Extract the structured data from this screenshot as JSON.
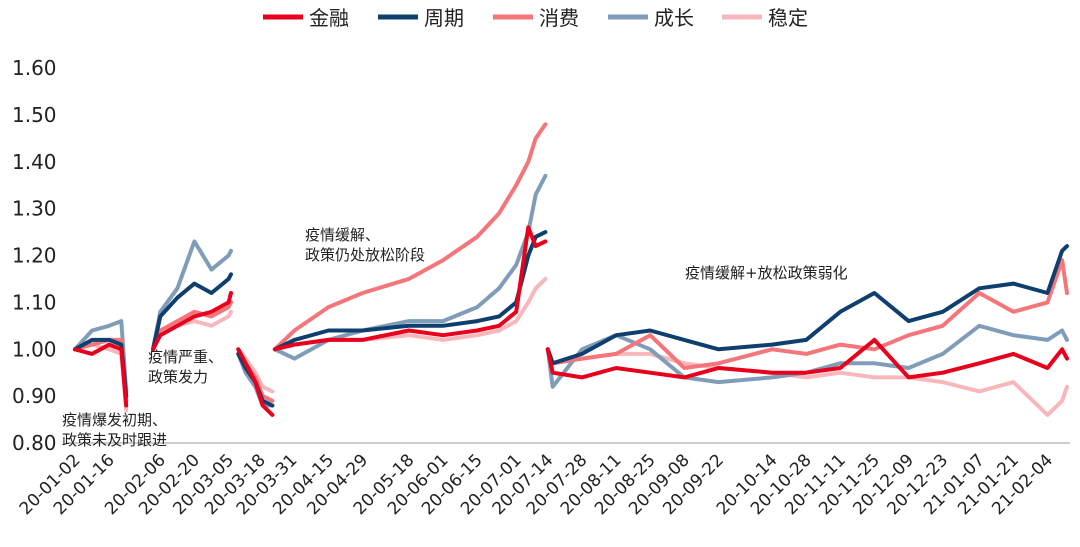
{
  "chart_data": {
    "type": "line",
    "ylim": [
      0.8,
      1.6
    ],
    "y_ticks": [
      "0.80",
      "0.90",
      "1.00",
      "1.10",
      "1.20",
      "1.30",
      "1.40",
      "1.50",
      "1.60"
    ],
    "x_ticks": [
      "20-01-02",
      "20-01-16",
      "20-02-06",
      "20-02-20",
      "20-03-05",
      "20-03-18",
      "20-03-31",
      "20-04-15",
      "20-04-29",
      "20-05-18",
      "20-06-01",
      "20-06-15",
      "20-07-01",
      "20-07-14",
      "20-07-28",
      "20-08-11",
      "20-08-25",
      "20-09-08",
      "20-09-22",
      "20-10-14",
      "20-10-28",
      "20-11-11",
      "20-11-25",
      "20-12-09",
      "20-12-23",
      "21-01-07",
      "21-01-21",
      "21-02-04"
    ],
    "legend": [
      {
        "name": "金融",
        "color": "#e8001c"
      },
      {
        "name": "周期",
        "color": "#0e3f6e"
      },
      {
        "name": "消费",
        "color": "#f4757a"
      },
      {
        "name": "成长",
        "color": "#7f9db9"
      },
      {
        "name": "稳定",
        "color": "#f7b7bb"
      }
    ],
    "annotations": [
      {
        "lines": [
          "疫情爆发初期、",
          "政策未及时跟进"
        ]
      },
      {
        "lines": [
          "疫情严重、",
          "政策发力"
        ]
      },
      {
        "lines": [
          "疫情缓解、",
          "政策仍处放松阶段"
        ]
      },
      {
        "lines": [
          "疫情缓解+放松政策弱化"
        ]
      }
    ],
    "segments": [
      {
        "x": [
          "20-01-02",
          "20-01-09",
          "20-01-16",
          "20-01-21",
          "20-01-23"
        ],
        "series": [
          {
            "name": "金融",
            "values": [
              1.0,
              0.99,
              1.01,
              1.0,
              0.88
            ]
          },
          {
            "name": "周期",
            "values": [
              1.0,
              1.02,
              1.02,
              1.01,
              0.9
            ]
          },
          {
            "name": "消费",
            "values": [
              1.0,
              1.01,
              1.02,
              1.02,
              0.89
            ]
          },
          {
            "name": "成长",
            "values": [
              1.0,
              1.04,
              1.05,
              1.06,
              0.91
            ]
          },
          {
            "name": "稳定",
            "values": [
              1.0,
              1.01,
              1.0,
              0.99,
              0.87
            ]
          }
        ]
      },
      {
        "x": [
          "20-02-03",
          "20-02-06",
          "20-02-13",
          "20-02-20",
          "20-02-27",
          "20-03-05",
          "20-03-06"
        ],
        "series": [
          {
            "name": "金融",
            "values": [
              1.0,
              1.03,
              1.05,
              1.07,
              1.08,
              1.1,
              1.12
            ]
          },
          {
            "name": "周期",
            "values": [
              1.0,
              1.07,
              1.11,
              1.14,
              1.12,
              1.15,
              1.16
            ]
          },
          {
            "name": "消费",
            "values": [
              1.0,
              1.04,
              1.06,
              1.08,
              1.07,
              1.09,
              1.1
            ]
          },
          {
            "name": "成长",
            "values": [
              1.0,
              1.08,
              1.13,
              1.23,
              1.17,
              1.2,
              1.21
            ]
          },
          {
            "name": "稳定",
            "values": [
              1.0,
              1.03,
              1.05,
              1.06,
              1.05,
              1.07,
              1.08
            ]
          }
        ]
      },
      {
        "x": [
          "20-03-09",
          "20-03-12",
          "20-03-16",
          "20-03-19",
          "20-03-23"
        ],
        "series": [
          {
            "name": "金融",
            "values": [
              1.0,
              0.97,
              0.93,
              0.88,
              0.86
            ]
          },
          {
            "name": "周期",
            "values": [
              0.99,
              0.96,
              0.93,
              0.89,
              0.88
            ]
          },
          {
            "name": "消费",
            "values": [
              1.0,
              0.97,
              0.94,
              0.9,
              0.89
            ]
          },
          {
            "name": "成长",
            "values": [
              0.99,
              0.95,
              0.92,
              0.88,
              0.88
            ]
          },
          {
            "name": "稳定",
            "values": [
              1.0,
              0.98,
              0.95,
              0.92,
              0.91
            ]
          }
        ]
      },
      {
        "x": [
          "20-03-24",
          "20-04-01",
          "20-04-15",
          "20-04-29",
          "20-05-18",
          "20-06-01",
          "20-06-15",
          "20-06-24",
          "20-07-01",
          "20-07-06",
          "20-07-09",
          "20-07-13"
        ],
        "series": [
          {
            "name": "金融",
            "values": [
              1.0,
              1.01,
              1.02,
              1.02,
              1.04,
              1.03,
              1.04,
              1.05,
              1.08,
              1.26,
              1.22,
              1.23
            ]
          },
          {
            "name": "周期",
            "values": [
              1.0,
              1.02,
              1.04,
              1.04,
              1.05,
              1.05,
              1.06,
              1.07,
              1.1,
              1.2,
              1.24,
              1.25
            ]
          },
          {
            "name": "消费",
            "values": [
              1.0,
              1.04,
              1.09,
              1.12,
              1.15,
              1.19,
              1.24,
              1.29,
              1.35,
              1.4,
              1.45,
              1.48
            ]
          },
          {
            "name": "成长",
            "values": [
              1.0,
              0.98,
              1.02,
              1.04,
              1.06,
              1.06,
              1.09,
              1.13,
              1.18,
              1.25,
              1.33,
              1.37
            ]
          },
          {
            "name": "稳定",
            "values": [
              1.0,
              1.01,
              1.02,
              1.02,
              1.03,
              1.02,
              1.03,
              1.04,
              1.06,
              1.1,
              1.13,
              1.15
            ]
          }
        ]
      },
      {
        "x": [
          "20-07-14",
          "20-07-16",
          "20-07-28",
          "20-08-11",
          "20-08-25",
          "20-09-08",
          "20-09-22",
          "20-10-14",
          "20-10-28",
          "20-11-11",
          "20-11-25",
          "20-12-09",
          "20-12-23",
          "21-01-07",
          "21-01-21",
          "21-02-04",
          "21-02-10",
          "21-02-12"
        ],
        "series": [
          {
            "name": "金融",
            "values": [
              1.0,
              0.95,
              0.94,
              0.96,
              0.95,
              0.94,
              0.96,
              0.95,
              0.95,
              0.96,
              1.02,
              0.94,
              0.95,
              0.97,
              0.99,
              0.96,
              1.0,
              0.98
            ]
          },
          {
            "name": "周期",
            "values": [
              1.0,
              0.97,
              0.99,
              1.03,
              1.04,
              1.02,
              1.0,
              1.01,
              1.02,
              1.08,
              1.12,
              1.06,
              1.08,
              1.13,
              1.14,
              1.12,
              1.21,
              1.22
            ]
          },
          {
            "name": "消费",
            "values": [
              1.0,
              0.97,
              0.98,
              0.99,
              1.03,
              0.96,
              0.97,
              1.0,
              0.99,
              1.01,
              1.0,
              1.03,
              1.05,
              1.12,
              1.08,
              1.1,
              1.19,
              1.12
            ]
          },
          {
            "name": "成长",
            "values": [
              1.0,
              0.92,
              1.0,
              1.03,
              1.0,
              0.94,
              0.93,
              0.94,
              0.95,
              0.97,
              0.97,
              0.96,
              0.99,
              1.05,
              1.03,
              1.02,
              1.04,
              1.02
            ]
          },
          {
            "name": "稳定",
            "values": [
              1.0,
              0.97,
              0.98,
              0.99,
              0.99,
              0.97,
              0.96,
              0.95,
              0.94,
              0.95,
              0.94,
              0.94,
              0.93,
              0.91,
              0.93,
              0.86,
              0.89,
              0.92
            ]
          }
        ]
      }
    ]
  }
}
